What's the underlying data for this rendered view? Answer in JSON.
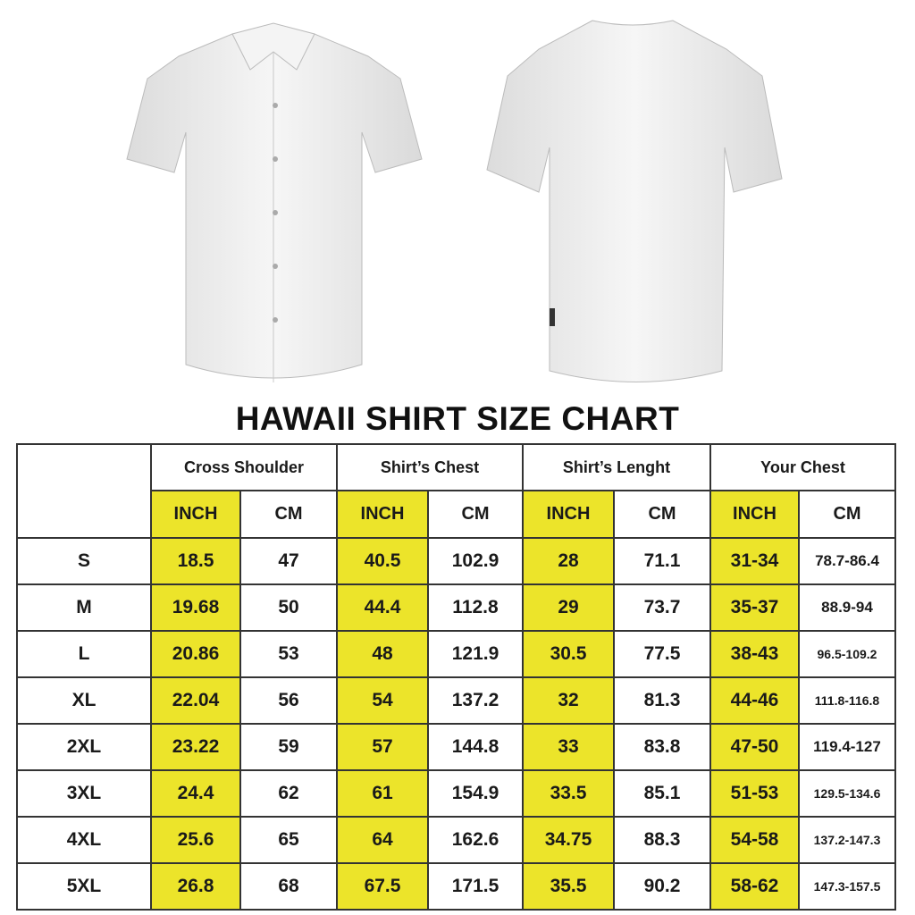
{
  "title": "HAWAII SHIRT SIZE CHART",
  "colors": {
    "inch_highlight": "#ece42a",
    "border": "#333333"
  },
  "groups": [
    "Cross Shoulder",
    "Shirt’s Chest",
    "Shirt’s Lenght",
    "Your Chest"
  ],
  "units": {
    "inch": "INCH",
    "cm": "CM"
  },
  "rows": [
    {
      "size": "S",
      "values": [
        "18.5",
        "47",
        "40.5",
        "102.9",
        "28",
        "71.1",
        "31-34",
        "78.7-86.4"
      ]
    },
    {
      "size": "M",
      "values": [
        "19.68",
        "50",
        "44.4",
        "112.8",
        "29",
        "73.7",
        "35-37",
        "88.9-94"
      ]
    },
    {
      "size": "L",
      "values": [
        "20.86",
        "53",
        "48",
        "121.9",
        "30.5",
        "77.5",
        "38-43",
        "96.5-109.2"
      ]
    },
    {
      "size": "XL",
      "values": [
        "22.04",
        "56",
        "54",
        "137.2",
        "32",
        "81.3",
        "44-46",
        "111.8-116.8"
      ]
    },
    {
      "size": "2XL",
      "values": [
        "23.22",
        "59",
        "57",
        "144.8",
        "33",
        "83.8",
        "47-50",
        "119.4-127"
      ]
    },
    {
      "size": "3XL",
      "values": [
        "24.4",
        "62",
        "61",
        "154.9",
        "33.5",
        "85.1",
        "51-53",
        "129.5-134.6"
      ]
    },
    {
      "size": "4XL",
      "values": [
        "25.6",
        "65",
        "64",
        "162.6",
        "34.75",
        "88.3",
        "54-58",
        "137.2-147.3"
      ]
    },
    {
      "size": "5XL",
      "values": [
        "26.8",
        "68",
        "67.5",
        "171.5",
        "35.5",
        "90.2",
        "58-62",
        "147.3-157.5"
      ]
    }
  ]
}
